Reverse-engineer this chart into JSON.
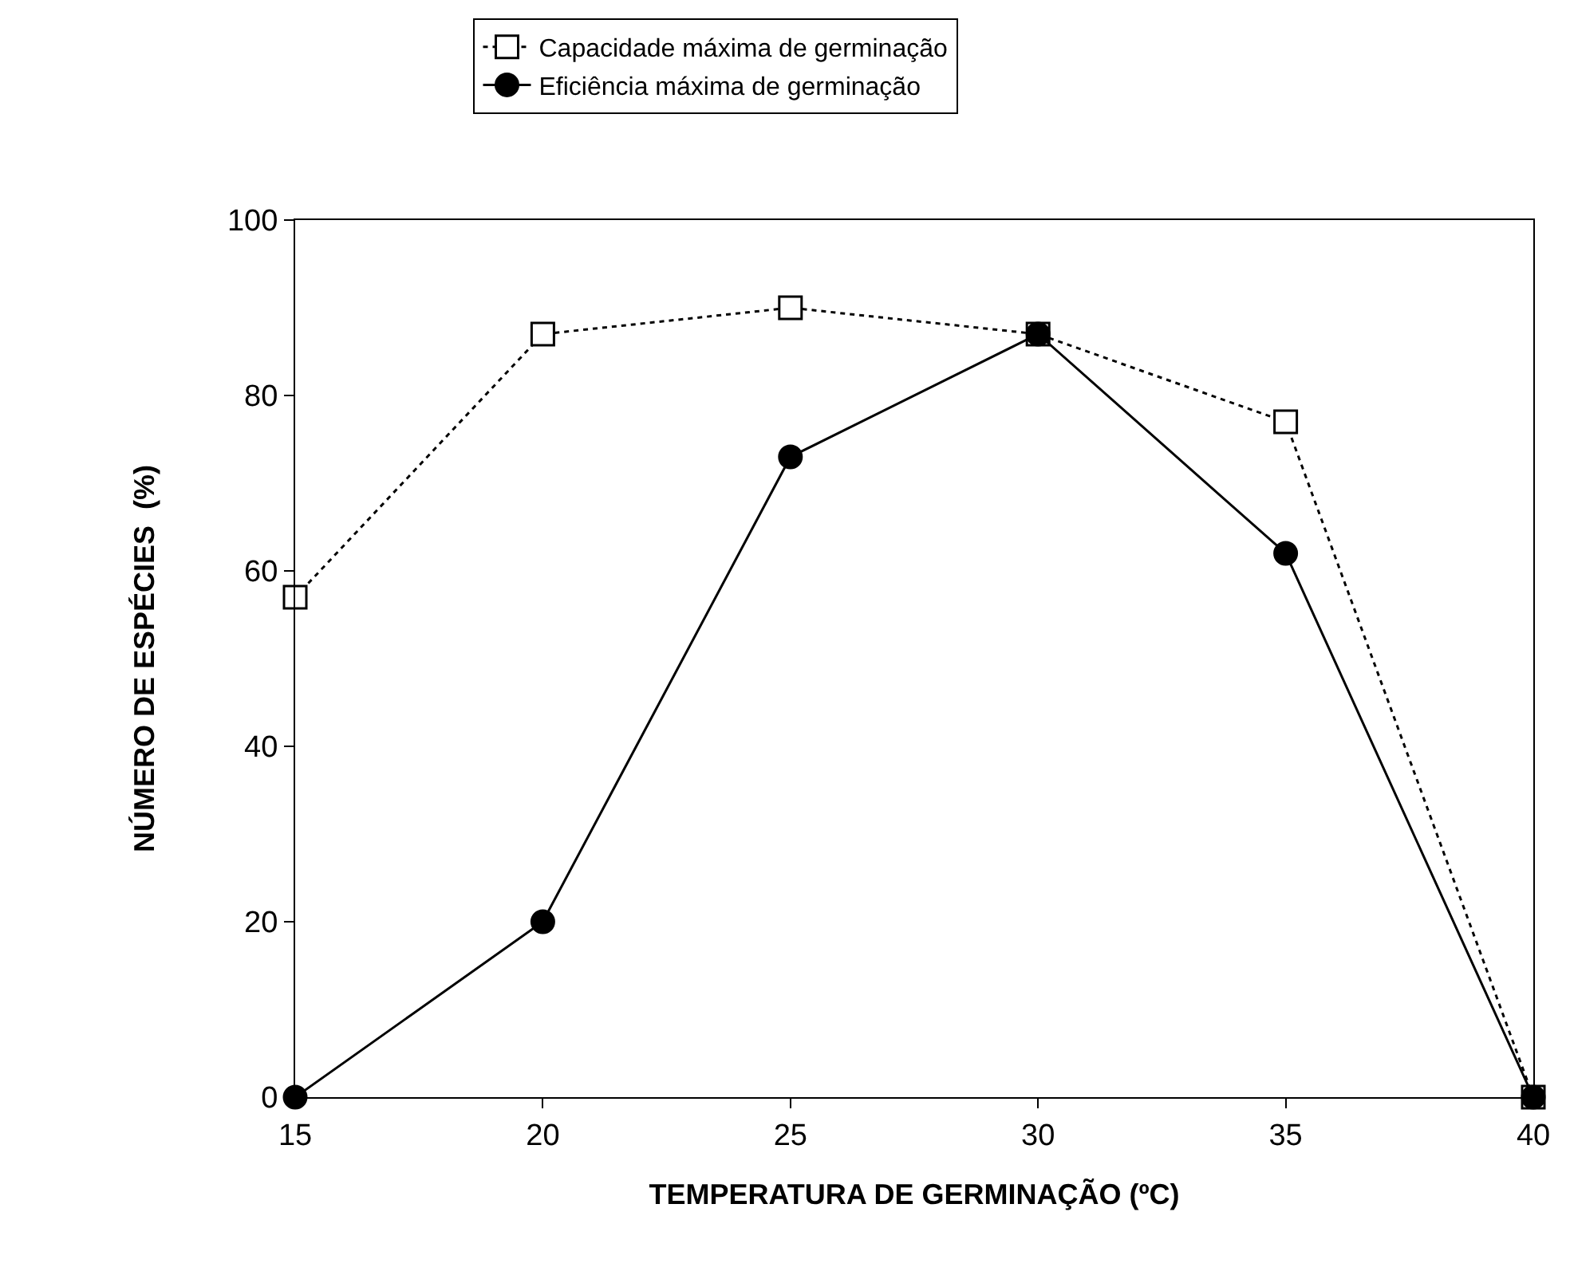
{
  "chart_data": {
    "type": "line",
    "xlabel": "TEMPERATURA DE GERMINAÇÃO (ºC)",
    "ylabel": "NÚMERO DE ESPÉCIES  (%)",
    "x": [
      15,
      20,
      25,
      30,
      35,
      40
    ],
    "series": [
      {
        "name": "Capacidade máxima de germinação",
        "color": "#000000",
        "marker": "square",
        "line_style": "dotted",
        "values": [
          57,
          87,
          90,
          87,
          77,
          0
        ]
      },
      {
        "name": "Eficiência máxima de germinação",
        "color": "#000000",
        "marker": "circle",
        "line_style": "solid",
        "values": [
          0,
          20,
          73,
          87,
          62,
          0
        ]
      }
    ],
    "xlim": [
      15,
      40
    ],
    "xticks": [
      15,
      20,
      25,
      30,
      35,
      40
    ],
    "ylim": [
      0,
      100
    ],
    "yticks": [
      0,
      20,
      40,
      60,
      80,
      100
    ],
    "grid": false,
    "legend": "top"
  }
}
